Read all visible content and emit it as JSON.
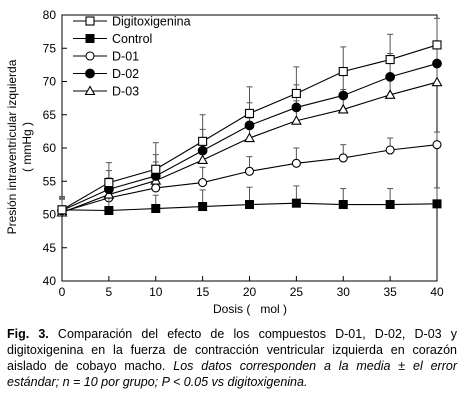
{
  "chart_data": {
    "type": "line",
    "x": [
      0,
      5,
      10,
      15,
      20,
      25,
      30,
      35,
      40
    ],
    "xlabel": "Dosis (   mol )",
    "ylabel_line1": "Presión intraventricular izquierda",
    "ylabel_line2": "( mmHg )",
    "xlim": [
      0,
      40
    ],
    "ylim": [
      40,
      80
    ],
    "xticks": [
      "0",
      "5",
      "10",
      "15",
      "20",
      "25",
      "30",
      "35",
      "40"
    ],
    "yticks": [
      "40",
      "45",
      "50",
      "55",
      "60",
      "65",
      "70",
      "75",
      "80"
    ],
    "grid": false,
    "legend_position": "top-left",
    "series": [
      {
        "name": "Digitoxigenina",
        "marker": "open-square",
        "values": [
          50.7,
          54.8,
          56.8,
          61.0,
          65.2,
          68.2,
          71.5,
          73.3,
          75.5
        ],
        "errors": [
          2.0,
          3.0,
          4.0,
          4.0,
          4.0,
          4.0,
          3.7,
          3.8,
          4.0
        ]
      },
      {
        "name": "Control",
        "marker": "filled-square",
        "values": [
          50.7,
          50.6,
          50.9,
          51.2,
          51.5,
          51.7,
          51.5,
          51.5,
          51.6
        ],
        "errors": [
          2.0,
          2.0,
          2.0,
          2.5,
          2.6,
          2.6,
          2.4,
          2.4,
          2.4
        ]
      },
      {
        "name": "D-01",
        "marker": "open-circle",
        "values": [
          50.4,
          52.5,
          54.0,
          54.8,
          56.5,
          57.7,
          58.5,
          59.7,
          60.5
        ],
        "errors": [
          2.0,
          2.0,
          2.0,
          2.3,
          2.2,
          2.3,
          2.0,
          1.8,
          1.9
        ]
      },
      {
        "name": "D-02",
        "marker": "filled-circle",
        "values": [
          50.6,
          53.8,
          55.8,
          59.6,
          63.4,
          66.1,
          67.9,
          70.7,
          72.7
        ],
        "errors": [
          2.0,
          2.8,
          3.2,
          3.2,
          3.4,
          3.4,
          3.6,
          3.5,
          3.4
        ]
      },
      {
        "name": "D-03",
        "marker": "open-triangle",
        "values": [
          50.3,
          53.0,
          55.1,
          58.2,
          61.5,
          64.1,
          65.8,
          68.0,
          69.9
        ],
        "errors": [
          2.0,
          2.5,
          2.8,
          3.0,
          3.0,
          3.0,
          3.0,
          2.8,
          2.8
        ]
      }
    ]
  },
  "caption": {
    "lead": "Fig. 3.",
    "body": " Comparación del efecto de los compuestos D-01, D-02, D-03 y digitoxigenina en la fuerza de contracción ventricular izquierda en corazón aislado de cobayo macho. ",
    "note": "Los datos corresponden a la media ± el error estándar; n = 10 por grupo; P < 0.05 vs digitoxigenina."
  }
}
